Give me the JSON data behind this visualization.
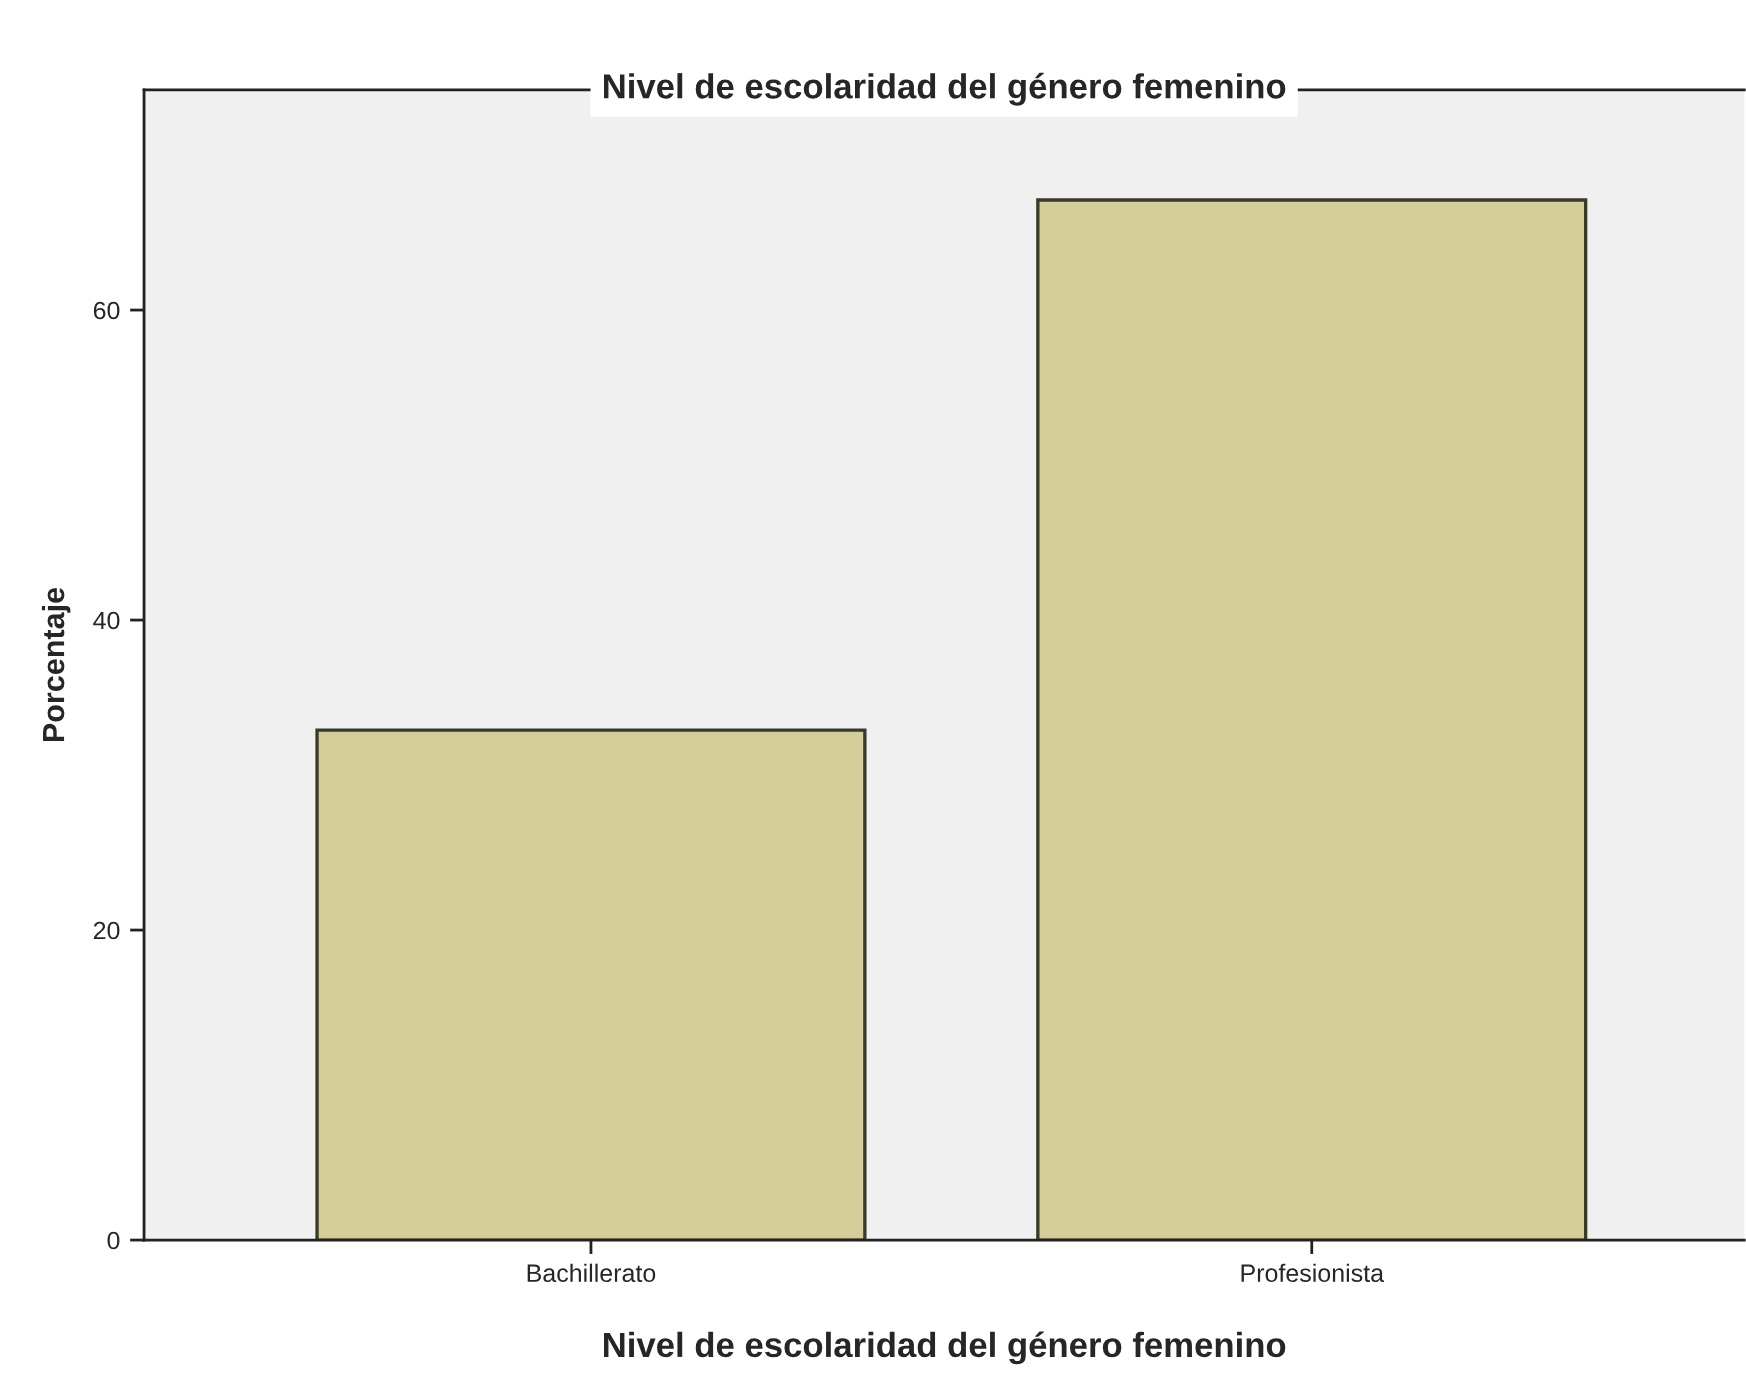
{
  "chart_data": {
    "type": "bar",
    "title": "Nivel de escolaridad del género femenino",
    "xlabel": "Nivel de escolaridad del género femenino",
    "ylabel": "Porcentaje",
    "categories": [
      "Bachillerato",
      "Profesionista"
    ],
    "values": [
      32.9,
      67.1
    ],
    "color": "#d3ce97",
    "ylim": [
      0,
      74.2
    ],
    "yticks": [
      0,
      20,
      40,
      60
    ],
    "grid": false
  }
}
